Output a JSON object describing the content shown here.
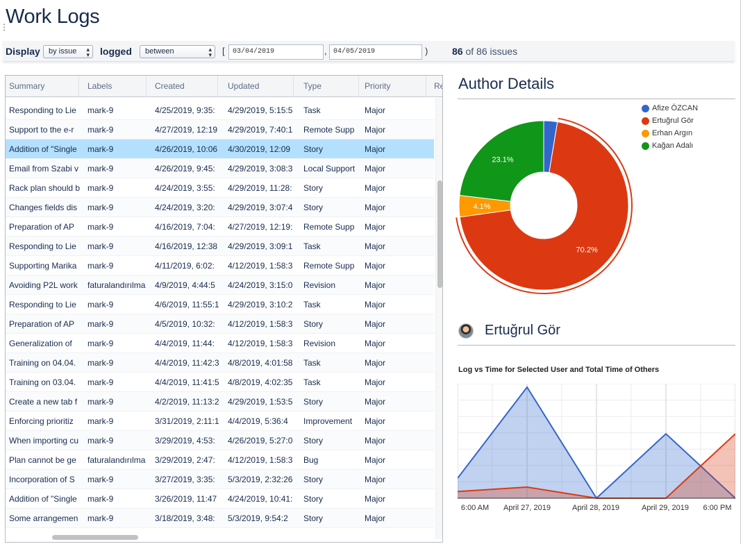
{
  "page": {
    "title": "Work Logs"
  },
  "filters": {
    "display_label": "Display",
    "display_value": "by issue",
    "logged_label": "logged",
    "logged_value": "between",
    "open_bracket": "[",
    "comma": ",",
    "close_bracket": ")",
    "date_from": "03/04/2019",
    "date_to": "04/05/2019",
    "count": "86",
    "count_text": "of 86 issues"
  },
  "table": {
    "columns": [
      "Summary",
      "Labels",
      "Created",
      "Updated",
      "Type",
      "Priority",
      "Re"
    ],
    "rows": [
      [
        "Responding to Lie",
        "mark-9",
        "4/25/2019, 9:35:",
        "4/29/2019, 5:15:5",
        "Task",
        "Major"
      ],
      [
        "Support to the e-r",
        "mark-9",
        "4/27/2019, 12:19",
        "4/29/2019, 7:40:1",
        "Remote Supp",
        "Major"
      ],
      [
        "Addition of \"Single",
        "mark-9",
        "4/26/2019, 10:06",
        "4/30/2019, 12:09",
        "Story",
        "Major"
      ],
      [
        "Email from Szabi v",
        "mark-9",
        "4/26/2019, 9:45:",
        "4/29/2019, 3:08:3",
        "Local Support",
        "Major"
      ],
      [
        "Rack plan should b",
        "mark-9",
        "4/24/2019, 3:55:",
        "4/29/2019, 11:28:",
        "Story",
        "Major"
      ],
      [
        "Changes fields dis",
        "mark-9",
        "4/24/2019, 3:20:",
        "4/29/2019, 3:07:4",
        "Story",
        "Major"
      ],
      [
        "Preparation of AP",
        "mark-9",
        "4/16/2019, 7:04:",
        "4/27/2019, 12:19:",
        "Remote Supp",
        "Major"
      ],
      [
        "Responding to Lie",
        "mark-9",
        "4/16/2019, 12:38",
        "4/29/2019, 3:09:1",
        "Task",
        "Major"
      ],
      [
        "Supporting Marika",
        "mark-9",
        "4/11/2019, 6:02:",
        "4/12/2019, 1:58:3",
        "Remote Supp",
        "Major"
      ],
      [
        "Avoiding P2L work",
        "faturalandırılma",
        "4/9/2019, 4:44:5",
        "4/24/2019, 3:15:0",
        "Revision",
        "Major"
      ],
      [
        "Responding to Lie",
        "mark-9",
        "4/6/2019, 11:55:1",
        "4/29/2019, 3:10:2",
        "Task",
        "Major"
      ],
      [
        "Preparation of AP",
        "mark-9",
        "4/5/2019, 10:32:",
        "4/12/2019, 1:58:3",
        "Story",
        "Major"
      ],
      [
        "Generalization of",
        "mark-9",
        "4/4/2019, 11:44:",
        "4/12/2019, 1:58:3",
        "Revision",
        "Major"
      ],
      [
        "Training on 04.04.",
        "mark-9",
        "4/4/2019, 11:42:3",
        "4/8/2019, 4:01:58",
        "Task",
        "Major"
      ],
      [
        "Training on 03.04.",
        "mark-9",
        "4/4/2019, 11:41:5",
        "4/8/2019, 4:02:35",
        "Task",
        "Major"
      ],
      [
        "Create a new tab f",
        "mark-9",
        "4/2/2019, 11:13:2",
        "4/29/2019, 1:53:5",
        "Story",
        "Major"
      ],
      [
        "Enforcing prioritiz",
        "mark-9",
        "3/31/2019, 2:11:1",
        "4/4/2019, 5:36:4",
        "Improvement",
        "Major"
      ],
      [
        "When importing cu",
        "mark-9",
        "3/29/2019, 4:53:",
        "4/26/2019, 5:27:0",
        "Story",
        "Major"
      ],
      [
        "Plan cannot be ge",
        "faturalandırılma",
        "3/29/2019, 2:47:",
        "4/12/2019, 1:58:3",
        "Bug",
        "Major"
      ],
      [
        "Incorporation of S",
        "mark-9",
        "3/27/2019, 3:35:",
        "5/3/2019, 2:32:26",
        "Story",
        "Major"
      ],
      [
        "Addition of \"Single",
        "mark-9",
        "3/26/2019, 11:47",
        "4/24/2019, 10:41:",
        "Story",
        "Major"
      ],
      [
        "Some arrangemen",
        "mark-9",
        "3/18/2019, 3:48:",
        "5/3/2019, 9:54:2",
        "Story",
        "Major"
      ]
    ],
    "selected_row": 2
  },
  "author_details": {
    "title": "Author Details",
    "selected_user": "Ertuğrul Gör"
  },
  "chart_data": [
    {
      "type": "pie",
      "title": "",
      "labels": [
        "Afize ÖZCAN",
        "Ertuğrul Gör",
        "Erhan Argın",
        "Kağan Adalı"
      ],
      "values": [
        2.6,
        70.2,
        4.1,
        23.1
      ],
      "data_labels": [
        "",
        "70.2%",
        "4.1%",
        "23.1%"
      ],
      "colors": [
        "#3366cc",
        "#dc3912",
        "#ff9900",
        "#109618"
      ],
      "highlighted": "Ertuğrul Gör",
      "legend": "top-right"
    },
    {
      "type": "area",
      "title": "Log vs Time for Selected User and Total Time of Others",
      "x": [
        "6:00 AM",
        "April 27, 2019",
        "April 28, 2019",
        "April 29, 2019",
        "6:00 PM"
      ],
      "x_positions": [
        0,
        1,
        2,
        3,
        4
      ],
      "series": [
        {
          "name": "",
          "color": "#3366cc",
          "points": [
            [
              -0.25,
              0.18
            ],
            [
              1,
              1.0
            ],
            [
              2,
              0.0
            ],
            [
              3,
              0.58
            ],
            [
              4,
              0.0
            ]
          ]
        },
        {
          "name": "",
          "color": "#dc3912",
          "points": [
            [
              -0.25,
              0.06
            ],
            [
              1,
              0.1
            ],
            [
              2,
              0.0
            ],
            [
              3,
              0.0
            ],
            [
              4.25,
              0.58
            ]
          ]
        }
      ],
      "xlabel": "",
      "ylabel": "",
      "ylim": [
        0,
        1
      ],
      "grid": true
    }
  ]
}
